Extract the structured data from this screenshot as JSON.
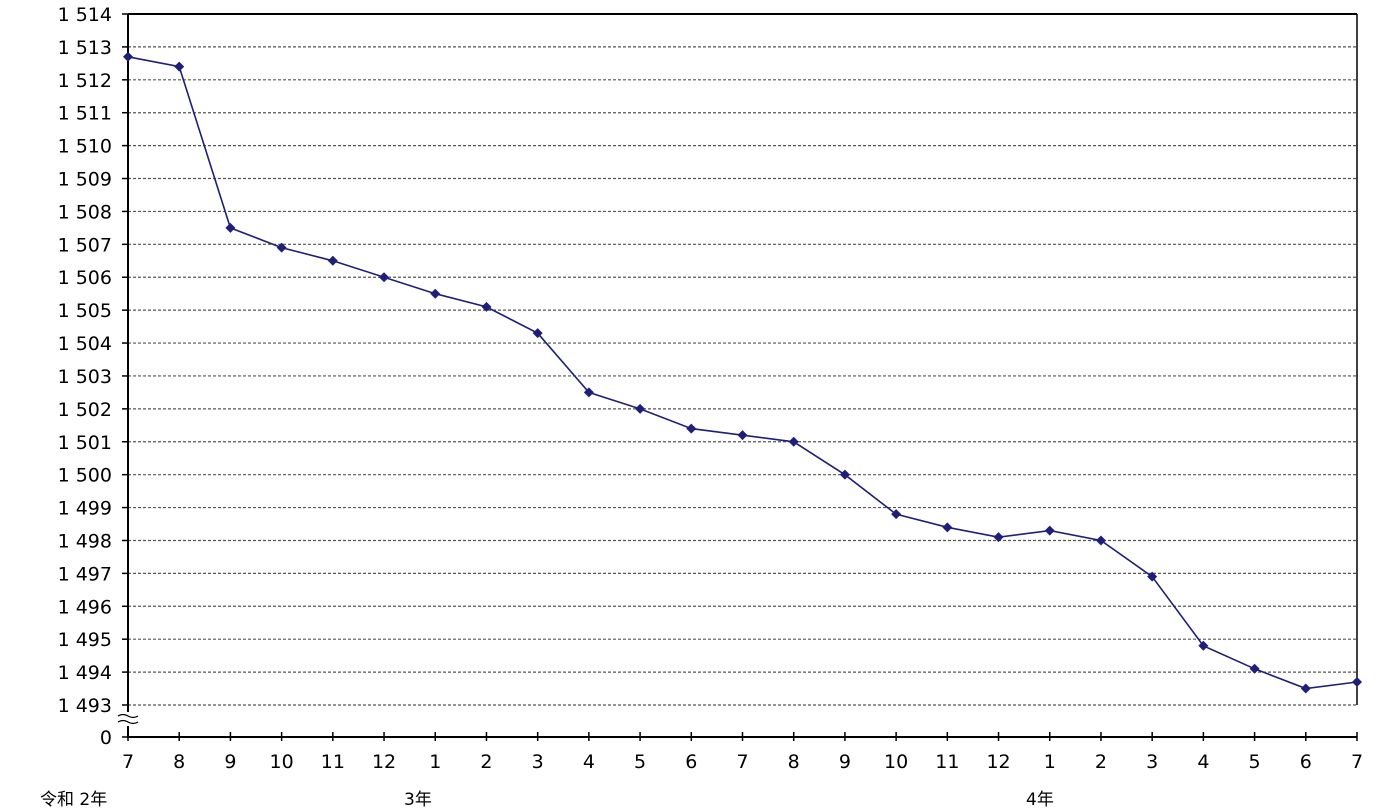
{
  "chart_data": {
    "type": "line",
    "title": "",
    "xlabel": "",
    "ylabel": "",
    "ylim": [
      1493,
      1514
    ],
    "y_axis_break": true,
    "y_ticks": [
      {
        "value": 1514,
        "label": "1 514"
      },
      {
        "value": 1513,
        "label": "1 513"
      },
      {
        "value": 1512,
        "label": "1 512"
      },
      {
        "value": 1511,
        "label": "1 511"
      },
      {
        "value": 1510,
        "label": "1 510"
      },
      {
        "value": 1509,
        "label": "1 509"
      },
      {
        "value": 1508,
        "label": "1 508"
      },
      {
        "value": 1507,
        "label": "1 507"
      },
      {
        "value": 1506,
        "label": "1 506"
      },
      {
        "value": 1505,
        "label": "1 505"
      },
      {
        "value": 1504,
        "label": "1 504"
      },
      {
        "value": 1503,
        "label": "1 503"
      },
      {
        "value": 1502,
        "label": "1 502"
      },
      {
        "value": 1501,
        "label": "1 501"
      },
      {
        "value": 1500,
        "label": "1 500"
      },
      {
        "value": 1499,
        "label": "1 499"
      },
      {
        "value": 1498,
        "label": "1 498"
      },
      {
        "value": 1497,
        "label": "1 497"
      },
      {
        "value": 1496,
        "label": "1 496"
      },
      {
        "value": 1495,
        "label": "1 495"
      },
      {
        "value": 1494,
        "label": "1 494"
      },
      {
        "value": 1493,
        "label": "1 493"
      }
    ],
    "y_zero_label": "0",
    "categories": [
      "7",
      "8",
      "9",
      "10",
      "11",
      "12",
      "1",
      "2",
      "3",
      "4",
      "5",
      "6",
      "7",
      "8",
      "9",
      "10",
      "11",
      "12",
      "1",
      "2",
      "3",
      "4",
      "5",
      "6",
      "7"
    ],
    "year_labels": [
      {
        "label": "令和 2年",
        "index": 0
      },
      {
        "label": "3年",
        "index": 6
      },
      {
        "label": "4年",
        "index": 18
      }
    ],
    "series": [
      {
        "color": "#1f1f7a",
        "values": [
          1512.7,
          1512.4,
          1507.5,
          1506.9,
          1506.5,
          1506.0,
          1505.5,
          1505.1,
          1504.3,
          1502.5,
          1502.0,
          1501.4,
          1501.2,
          1501.0,
          1500.0,
          1498.8,
          1498.4,
          1498.1,
          1498.3,
          1498.0,
          1496.9,
          1494.8,
          1494.1,
          1493.5,
          1493.7
        ]
      }
    ],
    "grid": "horizontal-dashed",
    "legend": "none"
  }
}
